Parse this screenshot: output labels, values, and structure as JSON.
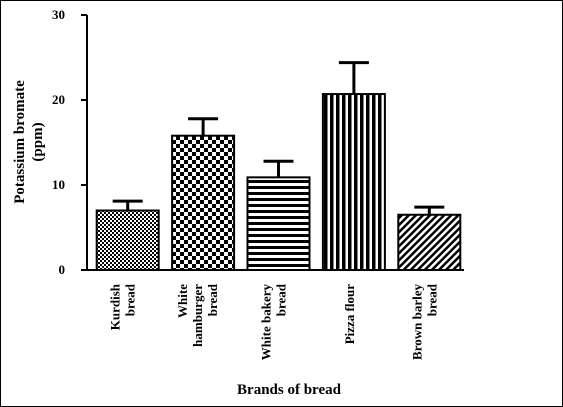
{
  "chart_data": {
    "type": "bar",
    "categories": [
      [
        "Kurdish",
        "bread"
      ],
      [
        "White",
        "hamburger",
        "bread"
      ],
      [
        "White bakery",
        "bread"
      ],
      [
        "Pizza flour"
      ],
      [
        "Brown barley",
        "bread"
      ]
    ],
    "values": [
      7.0,
      15.8,
      10.9,
      20.7,
      6.5
    ],
    "errors": [
      1.1,
      2.0,
      1.9,
      3.7,
      0.9
    ],
    "patterns": [
      "checker-small",
      "checker-large",
      "horizontal-stripes",
      "vertical-stripes",
      "diagonal-stripes"
    ],
    "ylabel": [
      "Potassium bromate",
      "(ppm)"
    ],
    "xlabel": "Brands of bread",
    "ylim": [
      0,
      30
    ],
    "yticks": [
      0,
      10,
      20,
      30
    ],
    "grid": false,
    "bar_color": "#000000"
  }
}
